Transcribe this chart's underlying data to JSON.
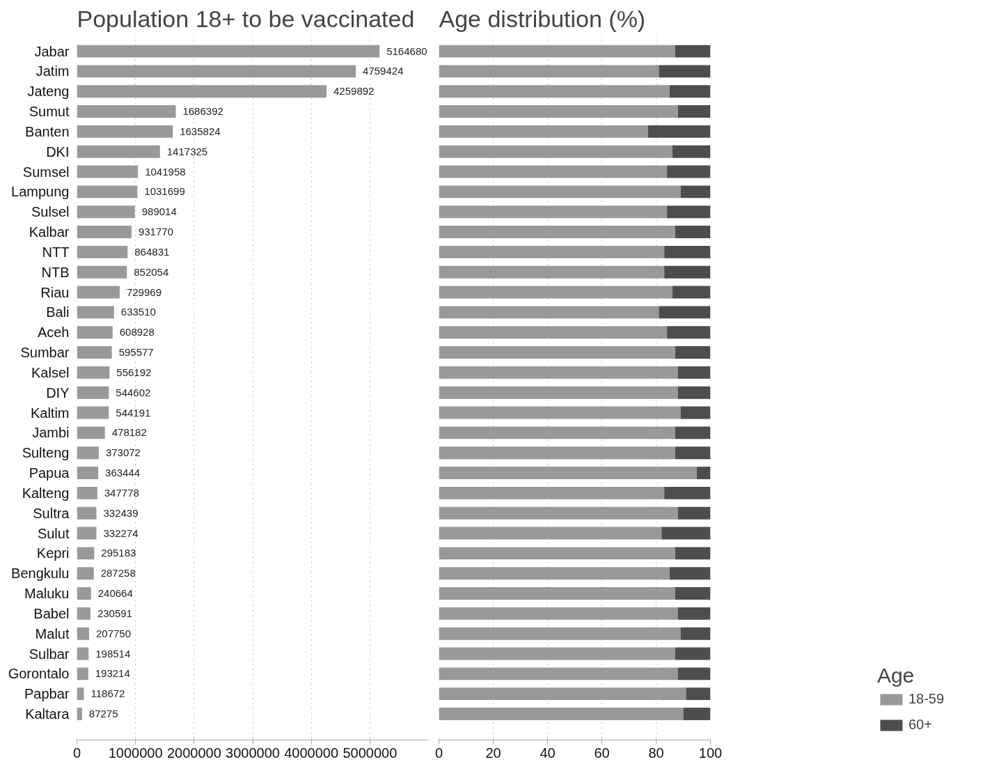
{
  "chart_data": [
    {
      "type": "bar",
      "orientation": "horizontal",
      "title": "Population 18+ to be vaccinated",
      "categories": [
        "Jabar",
        "Jatim",
        "Jateng",
        "Sumut",
        "Banten",
        "DKI",
        "Sumsel",
        "Lampung",
        "Sulsel",
        "Kalbar",
        "NTT",
        "NTB",
        "Riau",
        "Bali",
        "Aceh",
        "Sumbar",
        "Kalsel",
        "DIY",
        "Kaltim",
        "Jambi",
        "Sulteng",
        "Papua",
        "Kalteng",
        "Sultra",
        "Sulut",
        "Kepri",
        "Bengkulu",
        "Maluku",
        "Babel",
        "Malut",
        "Sulbar",
        "Gorontalo",
        "Papbar",
        "Kaltara"
      ],
      "series": [
        {
          "color": "#999999",
          "values": [
            5164680,
            4759424,
            4259892,
            1686392,
            1635824,
            1417325,
            1041958,
            1031699,
            989014,
            931770,
            864831,
            852054,
            729969,
            633510,
            608928,
            595577,
            556192,
            544602,
            544191,
            478182,
            373072,
            363444,
            347778,
            332439,
            332274,
            295183,
            287258,
            240664,
            230591,
            207750,
            198514,
            193214,
            118672,
            87275
          ]
        }
      ],
      "data_labels": true,
      "xlim": [
        0,
        6000000
      ],
      "xticks": [
        0,
        1000000,
        2000000,
        3000000,
        4000000,
        5000000
      ],
      "grid": "x",
      "legend": false
    },
    {
      "type": "bar",
      "orientation": "horizontal",
      "stacked": true,
      "title": "Age distribution (%)",
      "legend_title": "Age",
      "categories": [
        null,
        null,
        null,
        null,
        null,
        null,
        null,
        null,
        null,
        null,
        null,
        null,
        null,
        null,
        null,
        null,
        null,
        null,
        null,
        null,
        null,
        null,
        null,
        null,
        null,
        null,
        null,
        null,
        null,
        null,
        null,
        null,
        null,
        null
      ],
      "series": [
        {
          "name": "18-59",
          "color": "#999999",
          "values": [
            87,
            81,
            85,
            88,
            77,
            86,
            84,
            89,
            84,
            87,
            83,
            83,
            86,
            81,
            84,
            87,
            88,
            88,
            89,
            87,
            87,
            95,
            83,
            88,
            82,
            87,
            85,
            87,
            88,
            89,
            87,
            88,
            91,
            90
          ]
        },
        {
          "name": "60+",
          "color": "#4d4d4d",
          "values": [
            13,
            19,
            15,
            12,
            23,
            14,
            16,
            11,
            16,
            13,
            17,
            17,
            14,
            19,
            16,
            13,
            12,
            12,
            11,
            13,
            13,
            5,
            17,
            12,
            18,
            13,
            15,
            13,
            12,
            11,
            13,
            12,
            9,
            10
          ]
        }
      ],
      "xlim": [
        0,
        100
      ],
      "xticks": [
        0,
        20,
        40,
        60,
        80,
        100
      ],
      "tick_labels": "x",
      "grid": "x",
      "legend": "right"
    }
  ]
}
